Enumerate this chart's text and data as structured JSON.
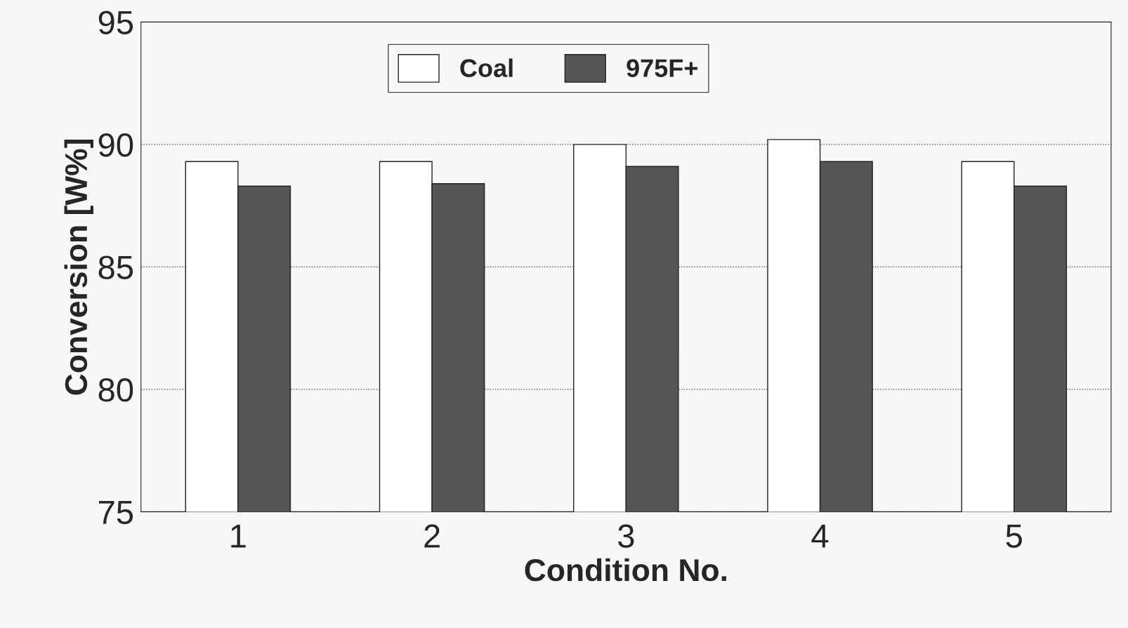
{
  "chart_data": {
    "type": "bar",
    "xlabel": "Condition No.",
    "ylabel": "Conversion [W%]",
    "categories": [
      "1",
      "2",
      "3",
      "4",
      "5"
    ],
    "series": [
      {
        "name": "Coal",
        "color": "#ffffff",
        "values": [
          89.3,
          89.3,
          90.0,
          90.2,
          89.3
        ]
      },
      {
        "name": "975F+",
        "color": "#555555",
        "values": [
          88.3,
          88.4,
          89.1,
          89.3,
          88.3
        ]
      }
    ],
    "ylim": [
      75,
      95
    ],
    "yticks": [
      75,
      80,
      85,
      90,
      95
    ],
    "grid": "y",
    "legend": "top"
  }
}
